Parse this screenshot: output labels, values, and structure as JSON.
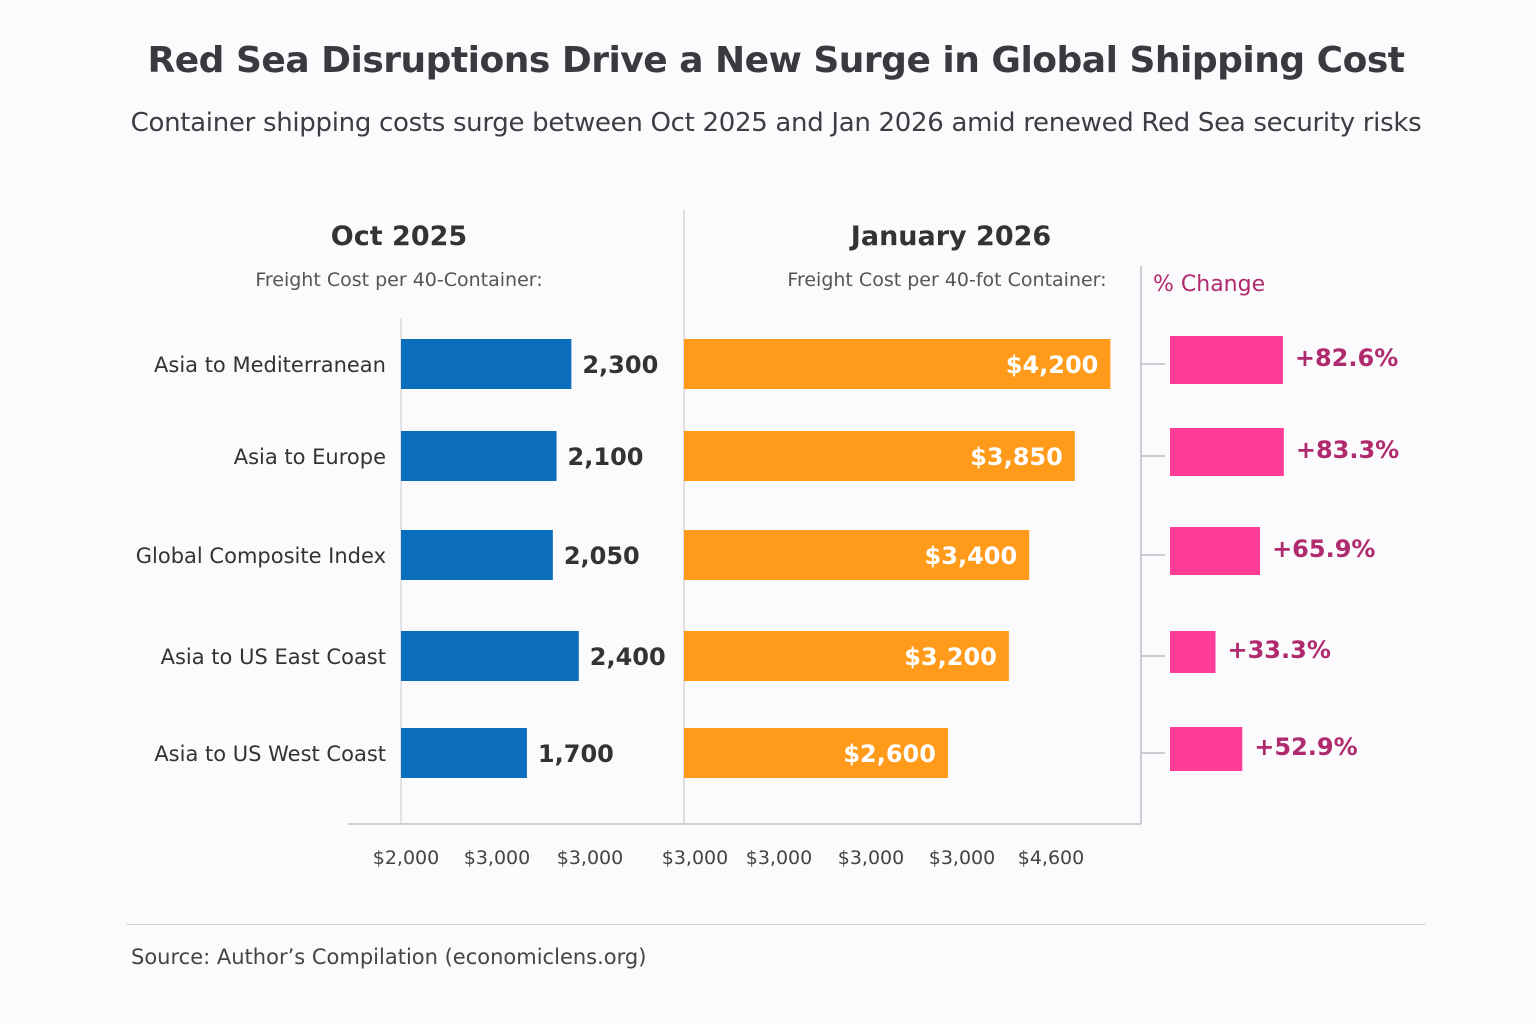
{
  "title": "Red Sea Disruptions Drive a New Surge in Global Shipping Cost",
  "subtitle": "Container shipping costs surge between Oct 2025 and Jan 2026 amid renewed Red Sea security risks",
  "source": "Source: Author’s Compilation (economiclens.org)",
  "colors": {
    "oct": "#0a6ebd",
    "jan": "#ff9a1a",
    "change": "#ff3d96",
    "change_text": "#b02a6e"
  },
  "chart_data": [
    {
      "type": "bar",
      "orientation": "horizontal",
      "title": "Oct 2025",
      "subtitle": "Freight Cost per 40-Container:",
      "categories": [
        "Asia to Mediterranean",
        "Asia to Europe",
        "Global Composite Index",
        "Asia to US East Coast",
        "Asia to US West Coast"
      ],
      "values": [
        2300,
        2100,
        2050,
        2400,
        1700
      ],
      "data_labels": [
        "2,300",
        "2,100",
        "2,050",
        "2,400",
        "1,700"
      ],
      "tick_labels": [
        "$2,000",
        "$3,000",
        "$3,000"
      ],
      "xlim": [
        0,
        2700
      ],
      "grid": false
    },
    {
      "type": "bar",
      "orientation": "horizontal",
      "title": "January 2026",
      "subtitle": "Freight Cost per 40-fot Container:",
      "categories": [
        "Asia to Mediterranean",
        "Asia to Europe",
        "Global Composite Index",
        "Asia to US East Coast",
        "Asia to US West Coast"
      ],
      "values": [
        4200,
        3850,
        3400,
        3200,
        2600
      ],
      "data_labels": [
        "$4,200",
        "$3,850",
        "$3,400",
        "$3,200",
        "$2,600"
      ],
      "tick_labels": [
        "$3,000",
        "$3,000",
        "$3,000",
        "$3,000",
        "$4,600"
      ],
      "xlim": [
        0,
        4600
      ],
      "grid": false
    },
    {
      "type": "bar",
      "orientation": "horizontal",
      "title": "% Change",
      "categories": [
        "Asia to Mediterranean",
        "Asia to Europe",
        "Global Composite Index",
        "Asia to US East Coast",
        "Asia to US West Coast"
      ],
      "values": [
        82.6,
        83.3,
        65.9,
        33.3,
        52.9
      ],
      "data_labels": [
        "+82.6%",
        "+83.3%",
        "+65.9%",
        "+33.3%",
        "+52.9%"
      ],
      "xlim": [
        0,
        90
      ]
    }
  ]
}
